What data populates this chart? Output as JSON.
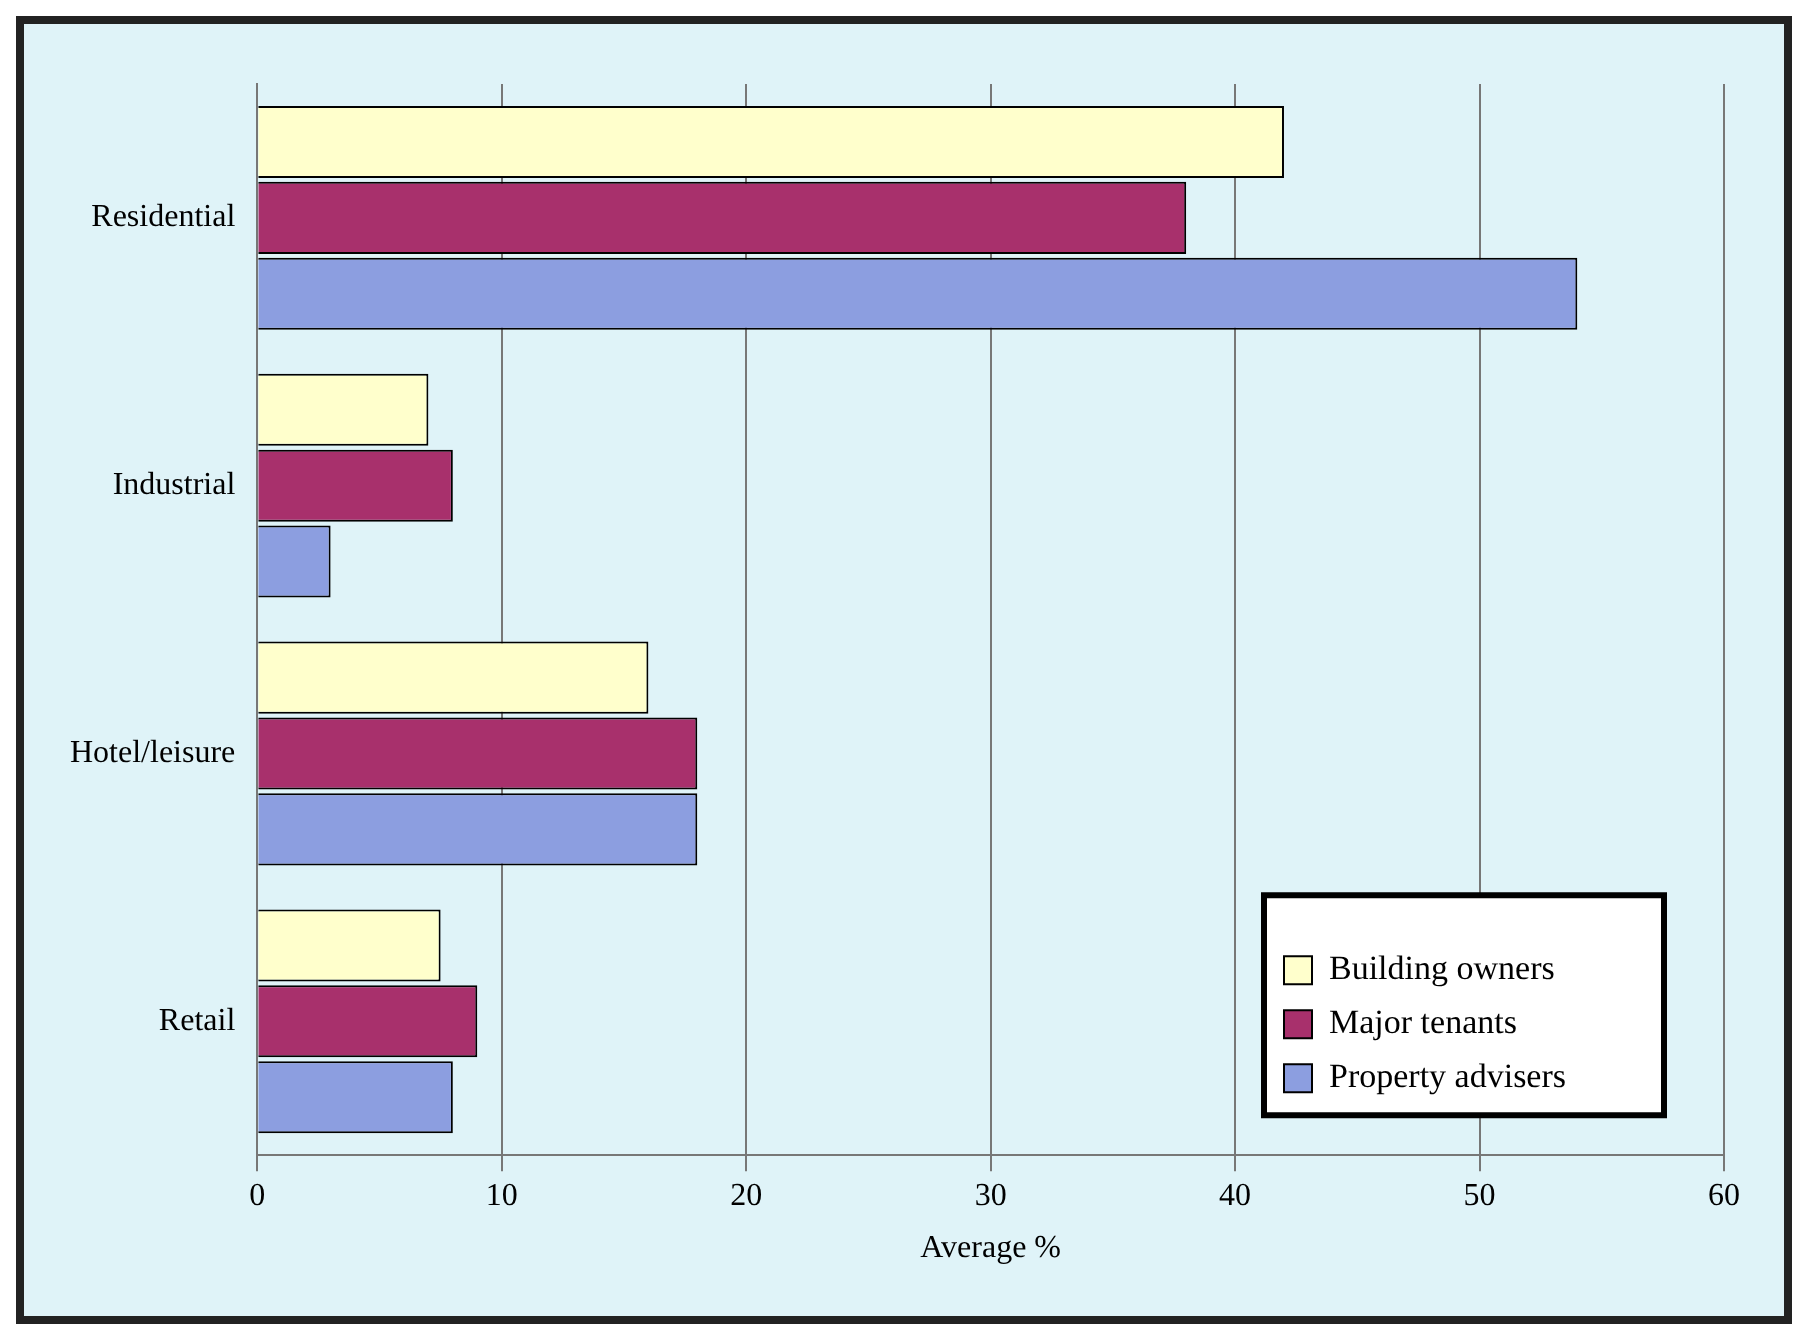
{
  "chart_data": {
    "type": "bar",
    "orientation": "horizontal",
    "categories": [
      "Residential",
      "Industrial",
      "Hotel/leisure",
      "Retail"
    ],
    "series": [
      {
        "name": "Building owners",
        "color": "#ffffcc",
        "values": [
          42,
          7,
          16,
          7.5
        ]
      },
      {
        "name": "Major tenants",
        "color": "#a8306c",
        "values": [
          38,
          8,
          18,
          9
        ]
      },
      {
        "name": "Property advisers",
        "color": "#8c9ee0",
        "values": [
          54,
          3,
          18,
          8
        ]
      }
    ],
    "xlabel": "Average %",
    "xlim": [
      0,
      60
    ],
    "xticks": [
      0,
      10,
      20,
      30,
      40,
      50,
      60
    ],
    "grid": "x",
    "legend": "bottom right"
  }
}
